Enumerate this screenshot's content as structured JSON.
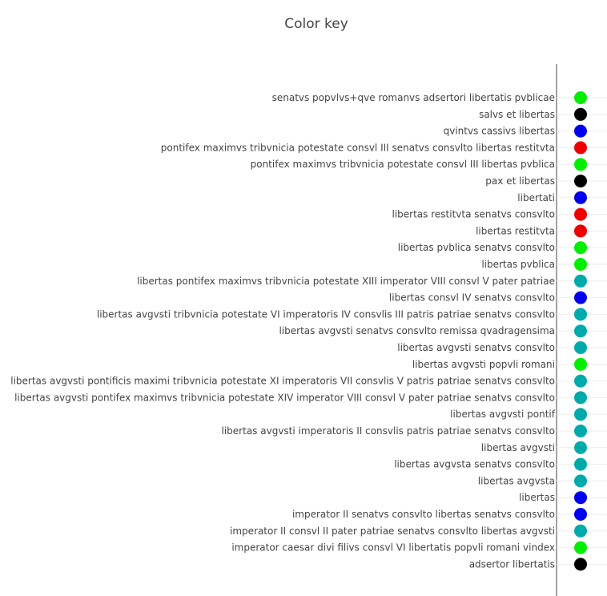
{
  "chart_data": {
    "type": "scatter",
    "title": "Color key",
    "xlabel": "",
    "ylabel": "",
    "grid": true,
    "colors": {
      "green": "#00ee00",
      "black": "#000000",
      "blue": "#0000ee",
      "red": "#ee0000",
      "teal": "#00aaaa"
    },
    "points": [
      {
        "label": "senatvs popvlvs+qve romanvs adsertori libertatis pvblicae",
        "color": "#00ee00"
      },
      {
        "label": "salvs et libertas",
        "color": "#000000"
      },
      {
        "label": "qvintvs cassivs libertas",
        "color": "#0000ee"
      },
      {
        "label": "pontifex maximvs tribvnicia potestate consvl III senatvs consvlto libertas restitvta",
        "color": "#ee0000"
      },
      {
        "label": "pontifex maximvs tribvnicia potestate consvl III libertas pvblica",
        "color": "#00ee00"
      },
      {
        "label": "pax et libertas",
        "color": "#000000"
      },
      {
        "label": "libertati",
        "color": "#0000ee"
      },
      {
        "label": "libertas restitvta senatvs consvlto",
        "color": "#ee0000"
      },
      {
        "label": "libertas restitvta",
        "color": "#ee0000"
      },
      {
        "label": "libertas pvblica senatvs consvlto",
        "color": "#00ee00"
      },
      {
        "label": "libertas pvblica",
        "color": "#00ee00"
      },
      {
        "label": "libertas pontifex maximvs tribvnicia potestate XIII imperator VIII consvl V pater patriae",
        "color": "#00aaaa"
      },
      {
        "label": "libertas consvl IV senatvs consvlto",
        "color": "#0000ee"
      },
      {
        "label": "libertas avgvsti tribvnicia potestate VI imperatoris IV consvlis III patris patriae senatvs consvlto",
        "color": "#00aaaa"
      },
      {
        "label": "libertas avgvsti senatvs consvlto remissa qvadragensima",
        "color": "#00aaaa"
      },
      {
        "label": "libertas avgvsti senatvs consvlto",
        "color": "#00aaaa"
      },
      {
        "label": "libertas avgvsti popvli romani",
        "color": "#00ee00"
      },
      {
        "label": "libertas avgvsti pontificis maximi tribvnicia potestate XI imperatoris VII consvlis V patris patriae senatvs consvlto",
        "color": "#00aaaa"
      },
      {
        "label": "libertas avgvsti pontifex maximvs tribvnicia potestate XIV imperator VIII consvl V pater patriae senatvs consvlto",
        "color": "#00aaaa"
      },
      {
        "label": "libertas avgvsti pontif",
        "color": "#00aaaa"
      },
      {
        "label": "libertas avgvsti imperatoris II consvlis patris patriae senatvs consvlto",
        "color": "#00aaaa"
      },
      {
        "label": "libertas avgvsti",
        "color": "#00aaaa"
      },
      {
        "label": "libertas avgvsta senatvs consvlto",
        "color": "#00aaaa"
      },
      {
        "label": "libertas avgvsta",
        "color": "#00aaaa"
      },
      {
        "label": "libertas",
        "color": "#0000ee"
      },
      {
        "label": "imperator II senatvs consvlto libertas senatvs consvlto",
        "color": "#0000ee"
      },
      {
        "label": "imperator II consvl II pater patriae senatvs consvlto libertas avgvsti",
        "color": "#00aaaa"
      },
      {
        "label": "imperator caesar divi filivs consvl VI libertatis popvli romani vindex",
        "color": "#00ee00"
      },
      {
        "label": "adsertor libertatis",
        "color": "#000000"
      }
    ]
  }
}
